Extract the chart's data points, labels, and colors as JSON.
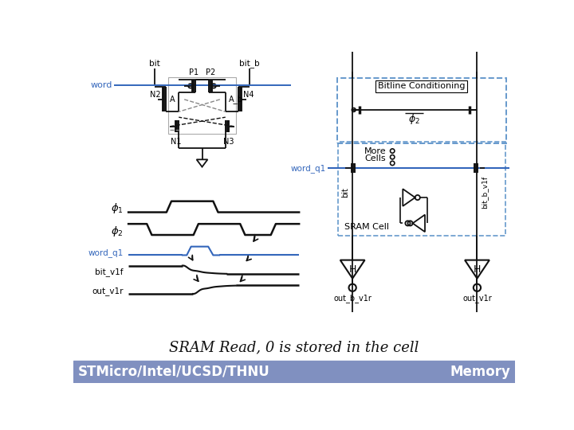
{
  "title": "SRAM Read, 0 is stored in the cell",
  "footer_left": "STMicro/Intel/UCSD/THNU",
  "footer_right": "Memory",
  "bg_color": "#ffffff",
  "footer_bg": "#8090c0",
  "title_fontsize": 13,
  "footer_fontsize": 12,
  "blue_color": "#3366bb",
  "dashed_blue": "#6699cc",
  "black": "#111111"
}
